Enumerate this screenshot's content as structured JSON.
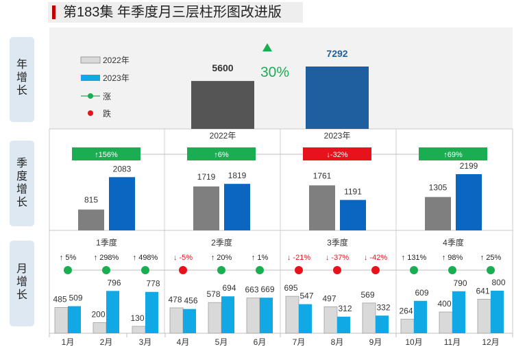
{
  "title": "第183集 年季度月三层柱形图改进版",
  "side_labels": {
    "year": "年\n增\n长",
    "quarter": "季\n度\n增\n长",
    "month": "月\n增\n长"
  },
  "colors": {
    "prev": "#7f7f7f",
    "cur_year": "#1f5f9f",
    "cur_quarter": "#0a66c0",
    "cur_month": "#11a8e6",
    "prev_year": "#555555",
    "up": "#1aad52",
    "down": "#e8121c",
    "legend_prev": "#d9d9d9"
  },
  "chart_data": [
    {
      "id": "year",
      "type": "bar",
      "categories": [
        "2022年",
        "2023年"
      ],
      "values": [
        5600,
        7292
      ],
      "data_labels": [
        "5600",
        "7292"
      ],
      "change_label": "30%",
      "change_direction": "up",
      "legend": [
        {
          "label": "2022年",
          "marker": "bar-gray"
        },
        {
          "label": "2023年",
          "marker": "bar-blue"
        },
        {
          "label": "涨",
          "marker": "dot-green"
        },
        {
          "label": "跌",
          "marker": "dot-red"
        }
      ]
    },
    {
      "id": "quarter",
      "type": "bar",
      "categories": [
        "1季度",
        "2季度",
        "3季度",
        "4季度"
      ],
      "series": [
        {
          "name": "2022年",
          "values": [
            815,
            1719,
            1761,
            1305
          ],
          "labels": [
            "815",
            "1719",
            "1761",
            "1305"
          ]
        },
        {
          "name": "2023年",
          "values": [
            2083,
            1819,
            1191,
            2199
          ],
          "labels": [
            "2083",
            "1819",
            "1191",
            "2199"
          ]
        }
      ],
      "changes": [
        {
          "text": "↑156%",
          "direction": "up"
        },
        {
          "text": "↑6%",
          "direction": "up"
        },
        {
          "text": "↓-32%",
          "direction": "down"
        },
        {
          "text": "↑69%",
          "direction": "up"
        }
      ]
    },
    {
      "id": "month",
      "type": "bar",
      "categories": [
        "1月",
        "2月",
        "3月",
        "4月",
        "5月",
        "6月",
        "7月",
        "8月",
        "9月",
        "10月",
        "11月",
        "12月"
      ],
      "quarter_labels": [
        "1季度",
        "2季度",
        "3季度",
        "4季度"
      ],
      "series": [
        {
          "name": "2022年",
          "values": [
            485,
            200,
            130,
            478,
            578,
            663,
            695,
            497,
            569,
            264,
            400,
            641
          ],
          "labels": [
            "485",
            "200",
            "130",
            "478",
            "578",
            "663",
            "695",
            "497",
            "569",
            "264",
            "400",
            "641"
          ]
        },
        {
          "name": "2023年",
          "values": [
            509,
            796,
            778,
            456,
            694,
            669,
            547,
            312,
            332,
            609,
            790,
            800
          ],
          "labels": [
            "509",
            "796",
            "778",
            "456",
            "694",
            "669",
            "547",
            "312",
            "332",
            "609",
            "790",
            "800"
          ]
        }
      ],
      "changes": [
        {
          "text": "↑ 5%",
          "direction": "up"
        },
        {
          "text": "↑ 298%",
          "direction": "up"
        },
        {
          "text": "↑ 498%",
          "direction": "up"
        },
        {
          "text": "↓ -5%",
          "direction": "down"
        },
        {
          "text": "↑ 20%",
          "direction": "up"
        },
        {
          "text": "↑ 1%",
          "direction": "up"
        },
        {
          "text": "↓ -21%",
          "direction": "down"
        },
        {
          "text": "↓ -37%",
          "direction": "down"
        },
        {
          "text": "↓ -42%",
          "direction": "down"
        },
        {
          "text": "↑ 131%",
          "direction": "up"
        },
        {
          "text": "↑ 98%",
          "direction": "up"
        },
        {
          "text": "↑ 25%",
          "direction": "up"
        }
      ]
    }
  ]
}
